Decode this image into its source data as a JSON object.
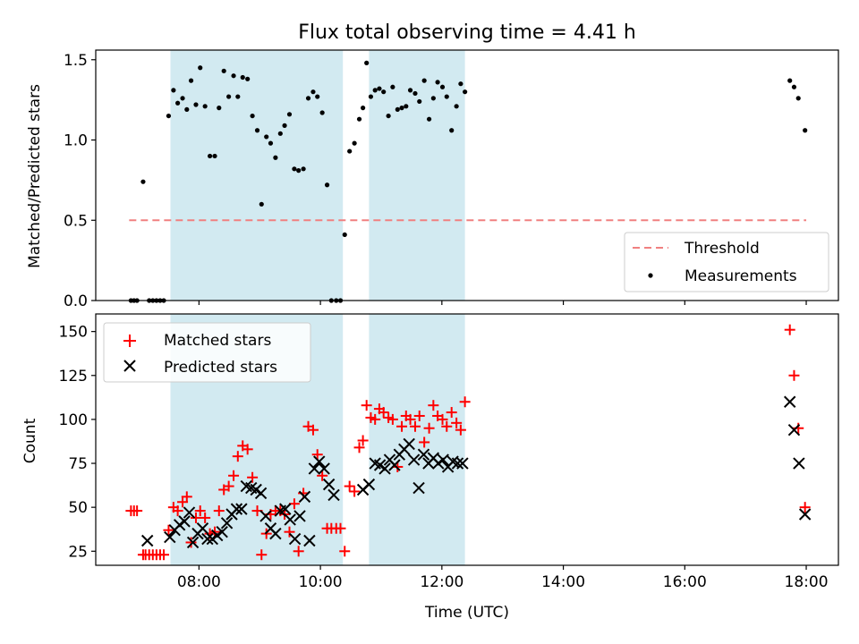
{
  "chart_data": {
    "type": "scatter",
    "title": "Flux total observing time = 4.41 h",
    "xlabel": "Time (UTC)",
    "x_unit": "hours UTC",
    "x_ticks": [
      {
        "value": 8,
        "label": "08:00"
      },
      {
        "value": 10,
        "label": "10:00"
      },
      {
        "value": 12,
        "label": "12:00"
      },
      {
        "value": 14,
        "label": "14:00"
      },
      {
        "value": 16,
        "label": "16:00"
      },
      {
        "value": 18,
        "label": "18:00"
      }
    ],
    "xlim": [
      6.3,
      18.53
    ],
    "shaded_intervals": [
      [
        7.53,
        10.37
      ],
      [
        10.8,
        12.38
      ]
    ],
    "shade_color": "#add8e6",
    "panels": [
      {
        "ylabel": "Matched/Predicted stars",
        "ylim": [
          0,
          1.56
        ],
        "y_ticks": [
          {
            "value": 0,
            "label": "0.0"
          },
          {
            "value": 0.5,
            "label": "0.5"
          },
          {
            "value": 1.0,
            "label": "1.0"
          },
          {
            "value": 1.5,
            "label": "1.5"
          }
        ],
        "threshold": {
          "name": "Threshold",
          "y": 0.5,
          "x_range": [
            6.85,
            18.0
          ],
          "color": "#f08080"
        },
        "legend": {
          "placement": "lower-right",
          "entries": [
            "Threshold",
            "Measurements"
          ]
        },
        "series": [
          {
            "name": "Measurements",
            "marker": "dot",
            "color": "#000000",
            "x": [
              6.88,
              6.93,
              6.98,
              7.08,
              7.18,
              7.24,
              7.3,
              7.36,
              7.42,
              7.5,
              7.58,
              7.65,
              7.73,
              7.8,
              7.87,
              7.95,
              8.02,
              8.1,
              8.18,
              8.26,
              8.33,
              8.41,
              8.49,
              8.57,
              8.64,
              8.72,
              8.8,
              8.88,
              8.96,
              9.03,
              9.11,
              9.18,
              9.26,
              9.34,
              9.41,
              9.49,
              9.57,
              9.64,
              9.72,
              9.8,
              9.88,
              9.95,
              10.03,
              10.11,
              10.18,
              10.26,
              10.33,
              10.4,
              10.48,
              10.56,
              10.64,
              10.7,
              10.76,
              10.83,
              10.9,
              10.97,
              11.04,
              11.12,
              11.19,
              11.27,
              11.34,
              11.41,
              11.48,
              11.56,
              11.63,
              11.71,
              11.79,
              11.86,
              11.93,
              12.01,
              12.08,
              12.16,
              12.24,
              12.31,
              12.38,
              17.73,
              17.8,
              17.87,
              17.98
            ],
            "y": [
              0,
              0,
              0,
              0.74,
              0,
              0,
              0,
              0,
              0,
              1.15,
              1.31,
              1.23,
              1.26,
              1.19,
              1.37,
              1.22,
              1.45,
              1.21,
              0.9,
              0.9,
              1.2,
              1.43,
              1.27,
              1.4,
              1.27,
              1.39,
              1.38,
              1.15,
              1.06,
              0.6,
              1.02,
              0.98,
              0.89,
              1.04,
              1.09,
              1.16,
              0.82,
              0.81,
              0.82,
              1.26,
              1.3,
              1.27,
              1.17,
              0.72,
              0,
              0,
              0,
              0.41,
              0.93,
              0.98,
              1.13,
              1.2,
              1.48,
              1.27,
              1.31,
              1.32,
              1.3,
              1.15,
              1.33,
              1.19,
              1.2,
              1.21,
              1.31,
              1.29,
              1.24,
              1.37,
              1.13,
              1.26,
              1.36,
              1.33,
              1.27,
              1.06,
              1.21,
              1.35,
              1.3,
              1.37,
              1.33,
              1.26,
              1.06
            ]
          }
        ]
      },
      {
        "ylabel": "Count",
        "ylim": [
          17,
          160
        ],
        "y_ticks": [
          {
            "value": 25,
            "label": "25"
          },
          {
            "value": 50,
            "label": "50"
          },
          {
            "value": 75,
            "label": "75"
          },
          {
            "value": 100,
            "label": "100"
          },
          {
            "value": 125,
            "label": "125"
          },
          {
            "value": 150,
            "label": "150"
          }
        ],
        "legend": {
          "placement": "upper-left",
          "entries": [
            "Matched stars",
            "Predicted stars"
          ]
        },
        "series": [
          {
            "name": "Matched stars",
            "marker": "plus",
            "color": "#ff0000",
            "x": [
              6.88,
              6.93,
              6.98,
              7.08,
              7.12,
              7.18,
              7.24,
              7.3,
              7.36,
              7.42,
              7.5,
              7.58,
              7.65,
              7.73,
              7.8,
              7.87,
              7.95,
              8.02,
              8.1,
              8.18,
              8.26,
              8.33,
              8.41,
              8.49,
              8.57,
              8.64,
              8.72,
              8.8,
              8.88,
              8.96,
              9.03,
              9.11,
              9.18,
              9.26,
              9.34,
              9.41,
              9.49,
              9.57,
              9.64,
              9.72,
              9.8,
              9.88,
              9.95,
              10.03,
              10.11,
              10.18,
              10.26,
              10.33,
              10.4,
              10.48,
              10.56,
              10.64,
              10.7,
              10.76,
              10.83,
              10.9,
              10.97,
              11.04,
              11.12,
              11.19,
              11.27,
              11.34,
              11.41,
              11.48,
              11.56,
              11.63,
              11.71,
              11.79,
              11.86,
              11.93,
              12.01,
              12.08,
              12.16,
              12.24,
              12.31,
              12.38,
              17.73,
              17.8,
              17.87,
              17.98
            ],
            "y": [
              48,
              48,
              48,
              23,
              23,
              23,
              23,
              23,
              23,
              23,
              37,
              50,
              48,
              53,
              56,
              30,
              44,
              48,
              44,
              35,
              36,
              48,
              60,
              62,
              68,
              79,
              85,
              83,
              67,
              48,
              23,
              35,
              46,
              48,
              48,
              46,
              36,
              52,
              25,
              58,
              96,
              94,
              80,
              68,
              38,
              38,
              38,
              38,
              25,
              62,
              59,
              84,
              88,
              108,
              101,
              100,
              106,
              104,
              101,
              100,
              73,
              96,
              102,
              100,
              96,
              102,
              87,
              95,
              108,
              102,
              100,
              96,
              104,
              98,
              94,
              110,
              151,
              125,
              95,
              50
            ]
          },
          {
            "name": "Predicted stars",
            "marker": "x",
            "color": "#000000",
            "x": [
              7.15,
              7.52,
              7.6,
              7.68,
              7.76,
              7.84,
              7.9,
              7.98,
              8.06,
              8.14,
              8.22,
              8.3,
              8.38,
              8.46,
              8.54,
              8.62,
              8.7,
              8.78,
              8.86,
              8.94,
              9.02,
              9.1,
              9.18,
              9.26,
              9.34,
              9.42,
              9.5,
              9.58,
              9.66,
              9.74,
              9.82,
              9.9,
              9.98,
              10.06,
              10.14,
              10.22,
              10.7,
              10.8,
              10.9,
              10.98,
              11.06,
              11.14,
              11.22,
              11.3,
              11.38,
              11.46,
              11.54,
              11.62,
              11.7,
              11.78,
              11.86,
              11.94,
              12.02,
              12.1,
              12.18,
              12.26,
              12.34,
              17.73,
              17.8,
              17.88,
              17.98
            ],
            "y": [
              31,
              33,
              37,
              40,
              42,
              47,
              30,
              35,
              38,
              32,
              32,
              34,
              36,
              41,
              46,
              49,
              49,
              62,
              61,
              60,
              58,
              45,
              38,
              35,
              48,
              49,
              43,
              32,
              45,
              56,
              31,
              72,
              76,
              72,
              63,
              57,
              60,
              63,
              75,
              74,
              72,
              77,
              74,
              80,
              83,
              86,
              77,
              61,
              80,
              75,
              78,
              75,
              77,
              73,
              76,
              75,
              75,
              110,
              94,
              75,
              46
            ]
          }
        ]
      }
    ]
  }
}
